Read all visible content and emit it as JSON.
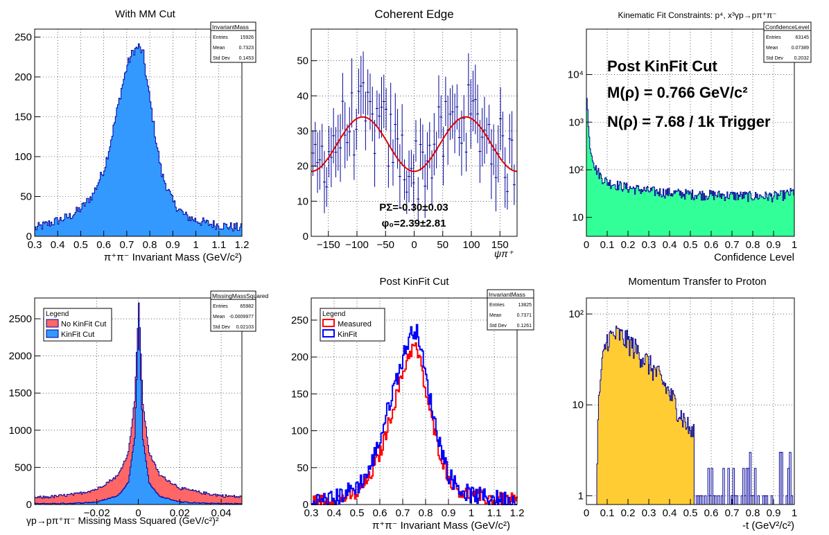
{
  "panels": [
    {
      "title": "With MM Cut",
      "stats": {
        "name": "InvariantMass",
        "rows": [
          [
            "Entries",
            "15926"
          ],
          [
            "Mean",
            "0.7323"
          ],
          [
            "Std Dev",
            "0.1453"
          ]
        ]
      },
      "xaxis": {
        "label": "π⁺π⁻ Invariant Mass (GeV/c²)",
        "ticks": [
          "0.3",
          "0.4",
          "0.5",
          "0.6",
          "0.7",
          "0.8",
          "0.9",
          "1",
          "1.1",
          "1.2"
        ]
      },
      "yaxis": {
        "ticks": [
          "0",
          "50",
          "100",
          "150",
          "200",
          "250"
        ]
      }
    },
    {
      "title": "Coherent Edge",
      "xaxis": {
        "label": "ψπ⁺",
        "ticks": [
          "−150",
          "−100",
          "−50",
          "0",
          "50",
          "100",
          "150"
        ]
      },
      "yaxis": {
        "ticks": [
          "0",
          "10",
          "20",
          "30",
          "40",
          "50"
        ]
      },
      "annotations": [
        "PΣ=-0.30±0.03",
        "φ₀=2.39±2.81"
      ]
    },
    {
      "title": "Kinematic Fit Constraints: p⁴, x³γp→pπ⁺π⁻",
      "stats": {
        "name": "ConfidenceLevel",
        "rows": [
          [
            "Entries",
            "63145"
          ],
          [
            "Mean",
            "0.07389"
          ],
          [
            "Std Dev",
            "0.2032"
          ]
        ]
      },
      "xaxis": {
        "label": "Confidence Level",
        "ticks": [
          "0",
          "0.1",
          "0.2",
          "0.3",
          "0.4",
          "0.5",
          "0.6",
          "0.7",
          "0.8",
          "0.9",
          "1"
        ]
      },
      "yaxis": {
        "ticks": [
          "10",
          "10²",
          "10³",
          "10⁴"
        ]
      },
      "annotations": [
        "Post KinFit Cut",
        "M(ρ) = 0.766 GeV/c²",
        "N(ρ) = 7.68 / 1k Trigger"
      ]
    },
    {
      "title": "",
      "stats": {
        "name": "MissingMassSquared",
        "rows": [
          [
            "Entries",
            "65982"
          ],
          [
            "Mean",
            "-0.0009977"
          ],
          [
            "Std Dev",
            "0.02103"
          ]
        ]
      },
      "xaxis": {
        "label": "γp→pπ⁺π⁻ Missing Mass Squared (GeV/c²)²",
        "ticks": [
          "−0.02",
          "0",
          "0.02",
          "0.04"
        ]
      },
      "yaxis": {
        "ticks": [
          "0",
          "500",
          "1000",
          "1500",
          "2000",
          "2500"
        ]
      },
      "legend": {
        "title": "Legend",
        "entries": [
          "No KinFit Cut",
          "KinFit Cut"
        ]
      }
    },
    {
      "title": "Post KinFit Cut",
      "stats": {
        "name": "InvariantMass",
        "rows": [
          [
            "Entries",
            "13825"
          ],
          [
            "Mean",
            "0.7371"
          ],
          [
            "Std Dev",
            "0.1261"
          ]
        ]
      },
      "xaxis": {
        "label": "π⁺π⁻ Invariant Mass (GeV/c²)",
        "ticks": [
          "0.3",
          "0.4",
          "0.5",
          "0.6",
          "0.7",
          "0.8",
          "0.9",
          "1",
          "1.1",
          "1.2"
        ]
      },
      "yaxis": {
        "ticks": [
          "0",
          "50",
          "100",
          "150",
          "200",
          "250"
        ]
      },
      "legend": {
        "title": "Legend",
        "entries": [
          "Measured",
          "KinFit"
        ]
      }
    },
    {
      "title": "Momentum Transfer to Proton",
      "xaxis": {
        "label": "-t (GeV²/c²)",
        "ticks": [
          "0",
          "0.1",
          "0.2",
          "0.3",
          "0.4",
          "0.5",
          "0.6",
          "0.7",
          "0.8",
          "0.9",
          "1"
        ]
      },
      "yaxis": {
        "ticks": [
          "1",
          "10",
          "10²"
        ]
      }
    }
  ],
  "colors": {
    "blue": "#3399ff",
    "red": "#ff6666",
    "green": "#33ff99",
    "yellow": "#ffcc33",
    "line": "#000099",
    "fit": "#dd0000",
    "measured": "#ff0000",
    "kinfit": "#0000ff"
  },
  "chart_data": [
    {
      "type": "bar",
      "title": "With MM Cut",
      "xlabel": "π⁺π⁻ Invariant Mass (GeV/c²)",
      "ylabel": "",
      "xlim": [
        0.3,
        1.2
      ],
      "ylim": [
        0,
        260
      ],
      "x": [
        0.3,
        0.35,
        0.4,
        0.45,
        0.5,
        0.55,
        0.6,
        0.625,
        0.65,
        0.675,
        0.7,
        0.725,
        0.75,
        0.77,
        0.78,
        0.8,
        0.825,
        0.85,
        0.9,
        0.95,
        1.0,
        1.05,
        1.1,
        1.15,
        1.2
      ],
      "values": [
        10,
        15,
        20,
        25,
        35,
        52,
        85,
        115,
        150,
        185,
        215,
        232,
        238,
        228,
        205,
        168,
        120,
        78,
        42,
        26,
        20,
        16,
        14,
        12,
        10
      ]
    },
    {
      "type": "scatter",
      "title": "Coherent Edge",
      "xlabel": "ψπ⁺",
      "xlim": [
        -180,
        180
      ],
      "ylim": [
        0,
        59
      ],
      "x": [
        -180,
        -150,
        -120,
        -90,
        -60,
        -30,
        0,
        30,
        60,
        90,
        120,
        150,
        180
      ],
      "values": [
        18.5,
        24,
        31,
        34,
        31,
        24,
        18.5,
        24,
        31,
        34,
        31,
        24,
        18.5
      ],
      "fit": "18.5 + 15.5*sin²(x)"
    },
    {
      "type": "bar",
      "title": "Kinematic Fit Constraints",
      "xlabel": "Confidence Level",
      "log_y": true,
      "xlim": [
        0,
        1
      ],
      "ylim": [
        4,
        90000
      ],
      "x": [
        0,
        0.005,
        0.01,
        0.02,
        0.04,
        0.07,
        0.1,
        0.15,
        0.2,
        0.3,
        0.4,
        0.5,
        0.6,
        0.7,
        0.8,
        0.9,
        0.95,
        1.0
      ],
      "values": [
        4000,
        1200,
        500,
        250,
        110,
        70,
        55,
        48,
        42,
        36,
        33,
        31,
        30,
        29,
        28,
        28,
        30,
        35
      ]
    },
    {
      "type": "bar",
      "title": "",
      "xlabel": "γp→pπ⁺π⁻ Missing Mass Squared (GeV/c²)²",
      "xlim": [
        -0.05,
        0.05
      ],
      "ylim": [
        0,
        2780
      ],
      "x": [
        -0.05,
        -0.04,
        -0.03,
        -0.02,
        -0.01,
        -0.005,
        -0.002,
        0,
        0.002,
        0.005,
        0.01,
        0.02,
        0.03,
        0.04,
        0.05
      ],
      "series": [
        {
          "name": "No KinFit Cut",
          "values": [
            90,
            110,
            140,
            210,
            390,
            700,
            1400,
            2700,
            1350,
            700,
            400,
            220,
            160,
            120,
            100
          ]
        },
        {
          "name": "KinFit Cut",
          "values": [
            10,
            12,
            18,
            35,
            120,
            300,
            900,
            2480,
            880,
            290,
            110,
            35,
            18,
            12,
            10
          ]
        }
      ]
    },
    {
      "type": "line",
      "title": "Post KinFit Cut",
      "xlabel": "π⁺π⁻ Invariant Mass (GeV/c²)",
      "xlim": [
        0.3,
        1.2
      ],
      "ylim": [
        0,
        280
      ],
      "x": [
        0.3,
        0.4,
        0.5,
        0.55,
        0.6,
        0.65,
        0.7,
        0.725,
        0.75,
        0.77,
        0.8,
        0.85,
        0.9,
        0.95,
        1.0,
        1.1,
        1.2
      ],
      "series": [
        {
          "name": "Measured",
          "values": [
            3,
            6,
            15,
            35,
            70,
            125,
            180,
            205,
            215,
            200,
            150,
            80,
            35,
            18,
            12,
            7,
            5
          ]
        },
        {
          "name": "KinFit",
          "values": [
            4,
            8,
            25,
            45,
            90,
            150,
            200,
            225,
            240,
            225,
            170,
            95,
            40,
            20,
            13,
            8,
            6
          ]
        }
      ]
    },
    {
      "type": "bar",
      "title": "Momentum Transfer to Proton",
      "xlabel": "-t (GeV²/c²)",
      "log_y": true,
      "xlim": [
        0,
        1
      ],
      "ylim": [
        0.8,
        150
      ],
      "x": [
        0.05,
        0.1,
        0.15,
        0.2,
        0.25,
        0.3,
        0.35,
        0.4,
        0.45,
        0.5,
        0.6,
        0.7,
        0.8,
        0.9
      ],
      "values": [
        2,
        55,
        60,
        50,
        38,
        28,
        20,
        13,
        8,
        5,
        3,
        2,
        2,
        1
      ]
    }
  ]
}
